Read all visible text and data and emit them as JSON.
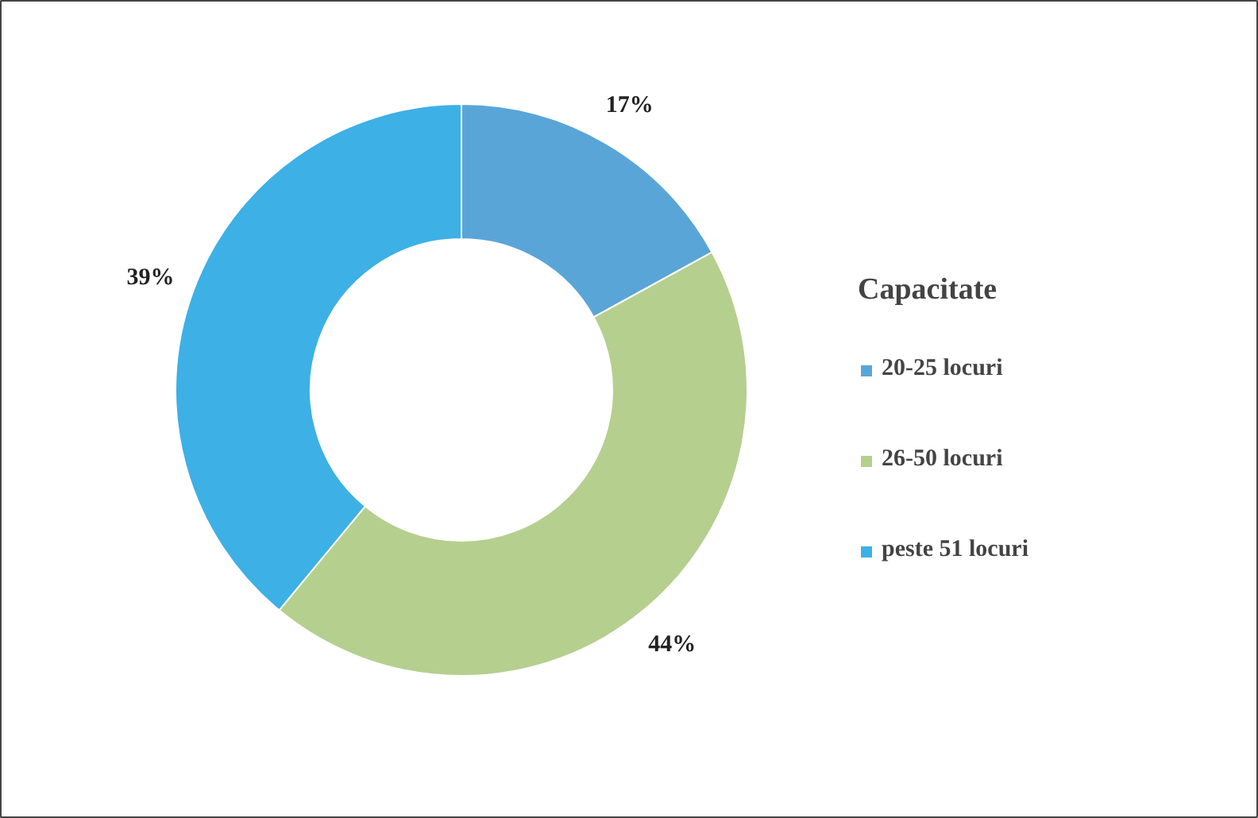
{
  "chart_data": {
    "type": "donut",
    "legend_title": "Capacitate",
    "categories": [
      "20-25 locuri",
      "26-50 locuri",
      "peste 51 locuri"
    ],
    "values": [
      17,
      44,
      39
    ],
    "colors": [
      "#5aa5d8",
      "#b5cf8e",
      "#3db0e6"
    ],
    "value_labels": [
      "17%",
      "44%",
      "39%"
    ],
    "legend": "right"
  }
}
